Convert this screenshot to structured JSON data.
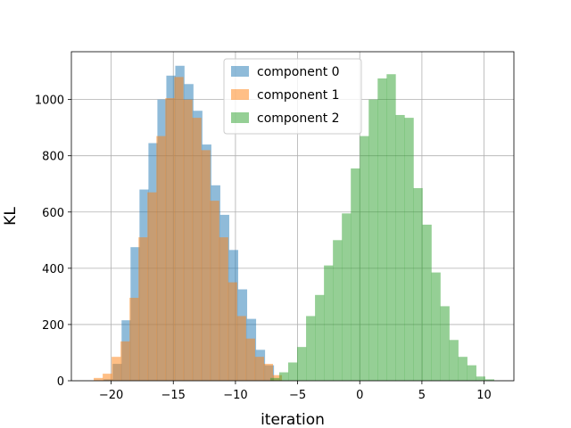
{
  "chart_data": {
    "type": "histogram",
    "title": "",
    "xlabel": "iteration",
    "ylabel": "KL",
    "xlim": [
      -23.2,
      12.4
    ],
    "ylim": [
      0,
      1170
    ],
    "xticks": [
      -20,
      -15,
      -10,
      -5,
      0,
      5,
      10
    ],
    "yticks": [
      0,
      200,
      400,
      600,
      800,
      1000
    ],
    "grid": true,
    "legend_position": "upper-center",
    "bin_width": 0.72,
    "series": [
      {
        "name": "component 0",
        "color": "#1f77b4",
        "opacity": 0.5,
        "bin_start": -20.6,
        "counts": [
          5,
          60,
          215,
          475,
          680,
          845,
          1000,
          1085,
          1120,
          1055,
          960,
          840,
          695,
          590,
          465,
          325,
          220,
          110,
          55
        ]
      },
      {
        "name": "component 1",
        "color": "#ff7f0e",
        "opacity": 0.5,
        "bin_start": -21.4,
        "counts": [
          10,
          25,
          85,
          140,
          295,
          510,
          670,
          870,
          1005,
          1080,
          1000,
          935,
          820,
          640,
          510,
          350,
          230,
          150,
          85,
          60,
          20
        ]
      },
      {
        "name": "component 2",
        "color": "#2ca02c",
        "opacity": 0.5,
        "bin_start": -7.2,
        "counts": [
          10,
          30,
          65,
          120,
          230,
          305,
          410,
          500,
          595,
          755,
          870,
          1000,
          1075,
          1090,
          945,
          935,
          685,
          555,
          385,
          265,
          145,
          85,
          55,
          15,
          5
        ]
      }
    ]
  }
}
